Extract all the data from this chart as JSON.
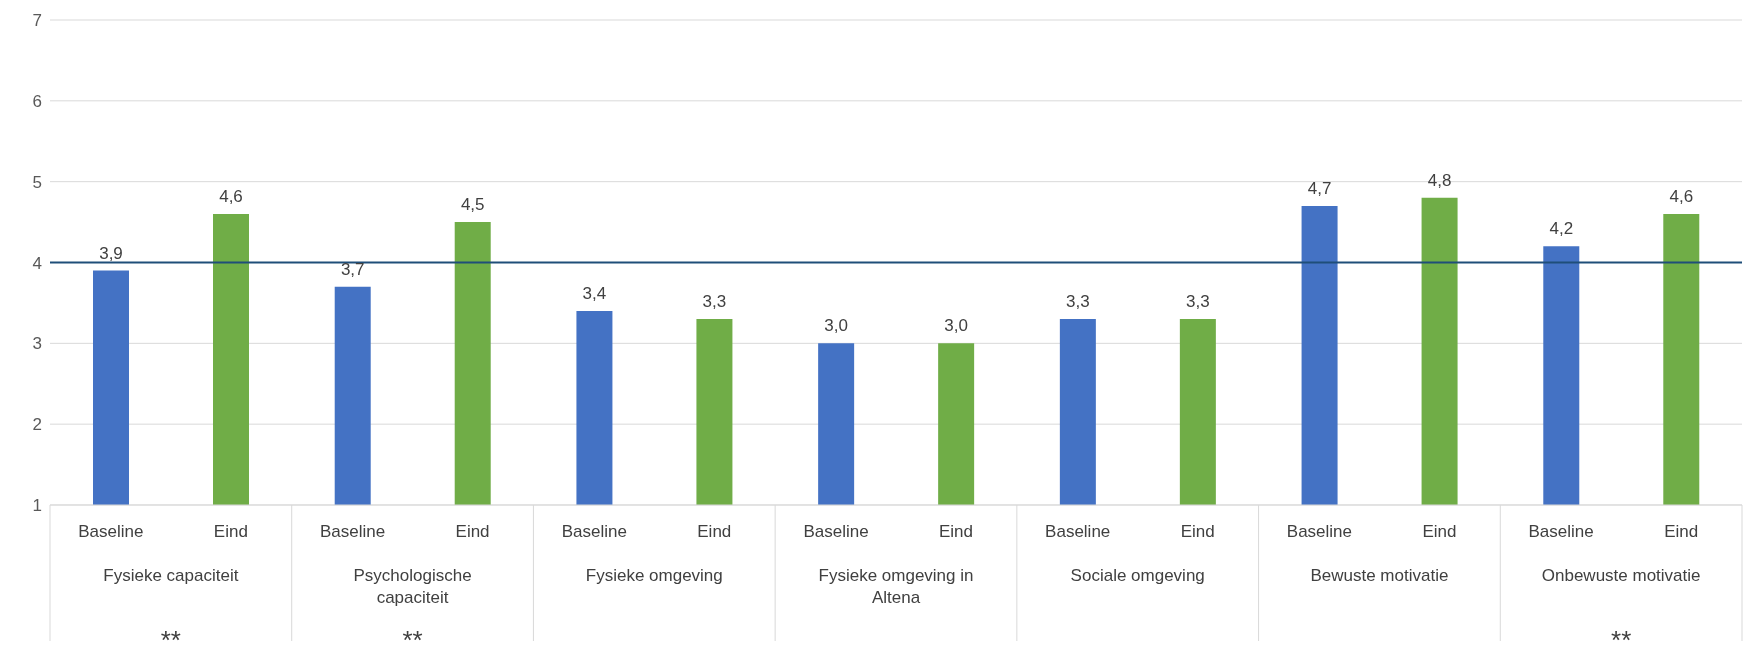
{
  "chart_data": {
    "type": "bar",
    "categories": [
      "Fysieke capaciteit",
      "Psychologische capaciteit",
      "Fysieke omgeving",
      "Fysieke omgeving in Altena",
      "Sociale omgeving",
      "Bewuste motivatie",
      "Onbewuste motivatie"
    ],
    "series": [
      {
        "name": "Baseline",
        "color": "#4472c4",
        "values": [
          3.9,
          3.7,
          3.4,
          3.0,
          3.3,
          4.7,
          4.2
        ],
        "value_labels": [
          "3,9",
          "3,7",
          "3,4",
          "3,0",
          "3,3",
          "4,7",
          "4,2"
        ]
      },
      {
        "name": "Eind",
        "color": "#70ad47",
        "values": [
          4.6,
          4.5,
          3.3,
          3.0,
          3.3,
          4.8,
          4.6
        ],
        "value_labels": [
          "4,6",
          "4,5",
          "3,3",
          "3,0",
          "3,3",
          "4,8",
          "4,6"
        ]
      }
    ],
    "ylim": [
      1,
      7
    ],
    "yticks": [
      1,
      2,
      3,
      4,
      5,
      6,
      7
    ],
    "grid": "y",
    "ref_lines": [
      {
        "axis": "y",
        "value": 4,
        "color": "#1f4e79"
      }
    ],
    "annotations": [
      "**",
      "**",
      "**"
    ]
  }
}
